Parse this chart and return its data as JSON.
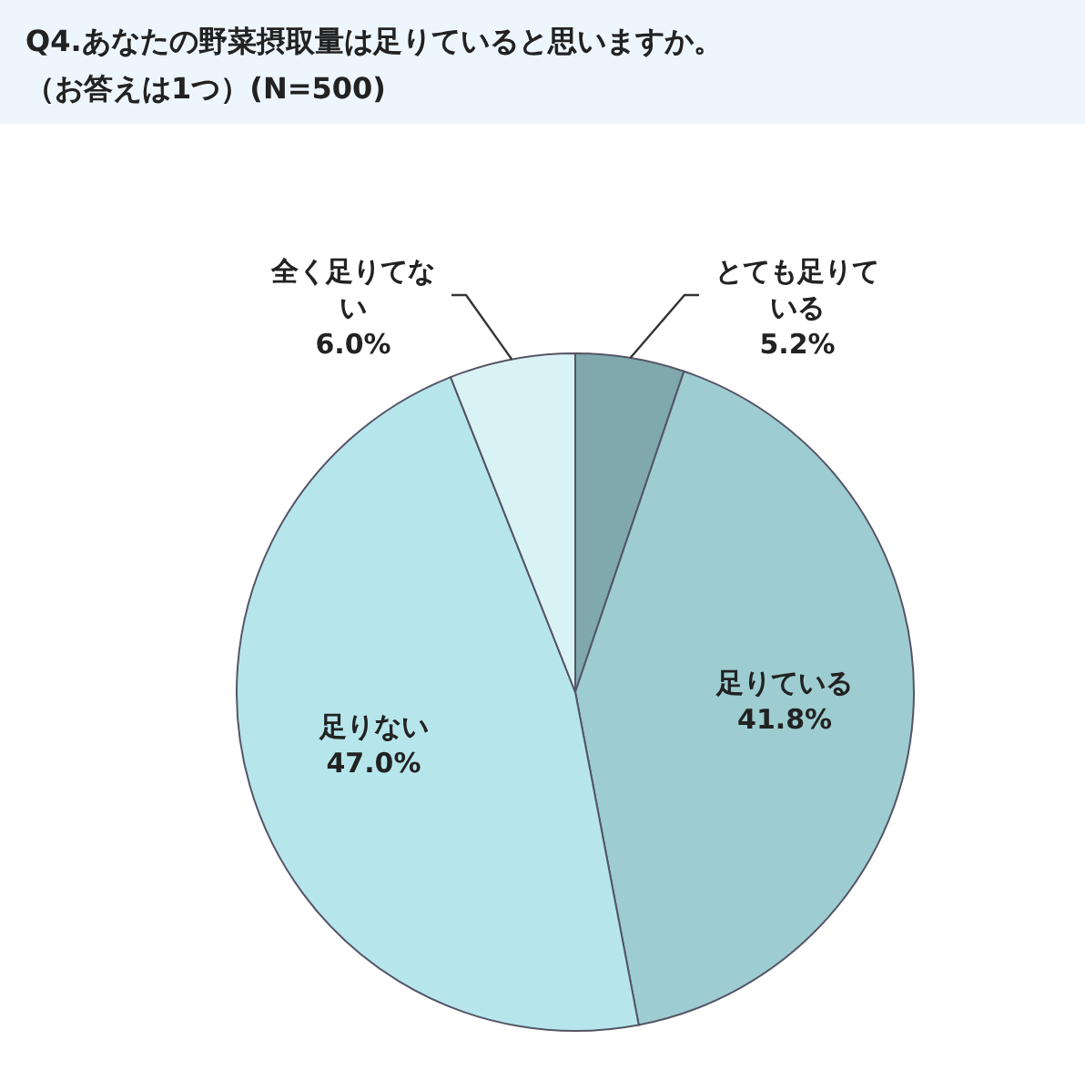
{
  "chart_data": {
    "type": "pie",
    "title": "Q4.あなたの野菜摂取量は足りていると思いますか。",
    "subtitle": "（お答えは1つ）(N=500)",
    "categories": [
      "とても足りている",
      "足りている",
      "足りない",
      "全く足りてない"
    ],
    "values": [
      5.2,
      41.8,
      47.0,
      6.0
    ],
    "colors": [
      "#7fa9ad",
      "#9ecdd1",
      "#b6e6ec",
      "#d9f2f5"
    ],
    "value_labels": [
      "5.2%",
      "41.8%",
      "47.0%",
      "6.0%"
    ]
  }
}
